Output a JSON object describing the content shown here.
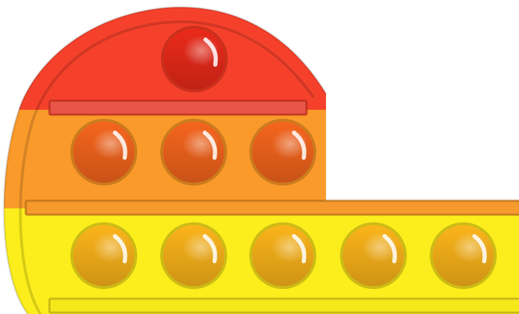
{
  "colors": {
    "red": "#f5412b",
    "orange": "#fa9a2b",
    "yellow": "#fcee1c",
    "edge_red": "#b82a18",
    "edge_orange": "#b76e18",
    "edge_yellow": "#b8a714",
    "ball_red": "#ea2a1a",
    "ball_orange": "#f5651d",
    "ball_yellow": "#fbb41a",
    "slot_red": "#e8564a",
    "slot_orange": "#f69a2e",
    "slot_yellow": "#f6e91a"
  },
  "board": {
    "rows": [
      {
        "band": "red",
        "bubbles": 1,
        "state": [
          "up"
        ]
      },
      {
        "band": "orange",
        "bubbles": 3,
        "state": [
          "up",
          "up",
          "up"
        ]
      },
      {
        "band": "yellow",
        "bubbles": 5,
        "state": [
          "up",
          "up",
          "up",
          "up",
          "up"
        ]
      }
    ]
  }
}
